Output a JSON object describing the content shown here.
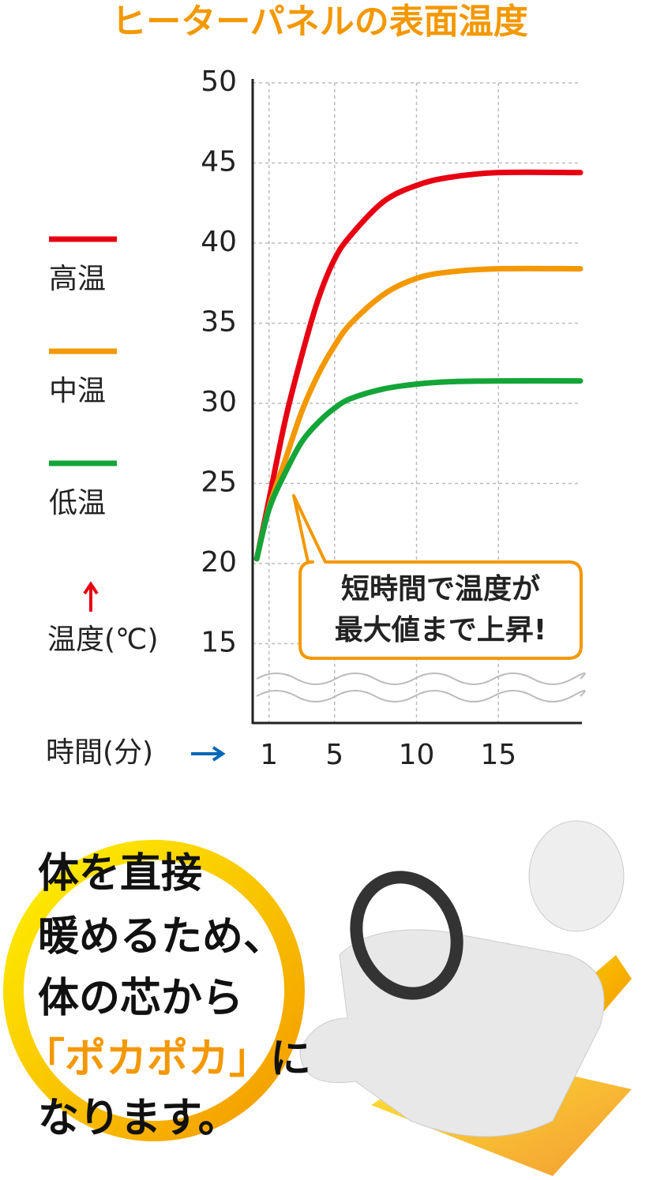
{
  "chart_data": {
    "type": "line",
    "title": "ヒーターパネルの表面温度",
    "x_label": "時間(分)",
    "y_label": "温度(℃)",
    "xlim": [
      0,
      20
    ],
    "xticks": [
      1,
      5,
      10,
      15
    ],
    "ylim": [
      10,
      50
    ],
    "yticks": [
      15,
      20,
      25,
      30,
      35,
      40,
      45,
      50
    ],
    "grid": true,
    "legend": "left",
    "x": [
      0.25,
      1,
      2,
      3,
      4,
      5,
      6,
      8,
      10,
      12,
      15,
      20
    ],
    "series": [
      {
        "name": "高温",
        "color": "#e60012",
        "values": [
          20.3,
          24,
          29,
          33,
          36.5,
          39,
          40.5,
          42.6,
          43.6,
          44.1,
          44.4,
          44.4
        ]
      },
      {
        "name": "中温",
        "color": "#f39800",
        "values": [
          20.3,
          23.5,
          26.5,
          29.5,
          31.8,
          33.6,
          35,
          36.8,
          37.8,
          38.2,
          38.4,
          38.4
        ]
      },
      {
        "name": "低温",
        "color": "#13a538",
        "values": [
          20.3,
          23.4,
          25.7,
          27.6,
          28.8,
          29.7,
          30.3,
          30.9,
          31.2,
          31.35,
          31.4,
          31.4
        ]
      }
    ],
    "annotation": [
      "短時間で温度が",
      "最大値まで上昇!"
    ]
  },
  "message": {
    "lines": [
      "体を直接",
      "暖めるため、",
      "体の芯から"
    ],
    "highlight": "「ポカポカ」",
    "after_highlight": "に",
    "last_line": "なります。"
  }
}
